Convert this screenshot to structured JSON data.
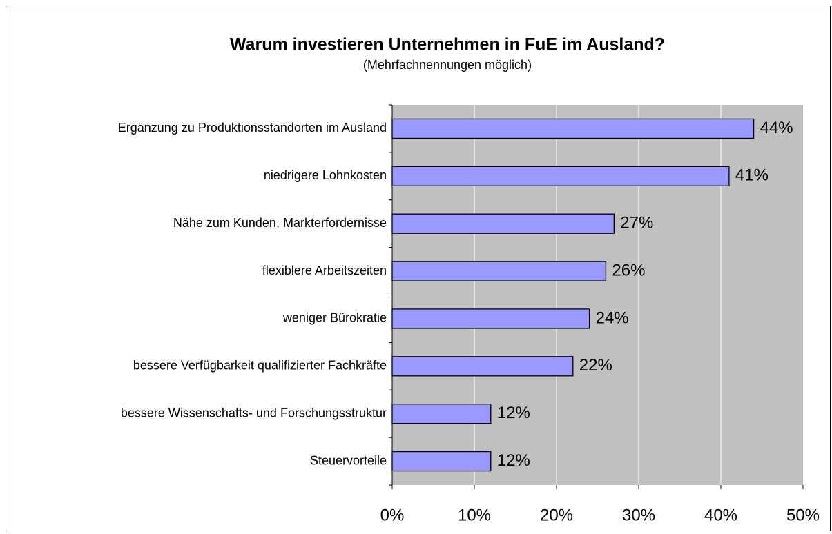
{
  "chart_data": {
    "type": "bar",
    "orientation": "horizontal",
    "title": "Warum investieren Unternehmen in FuE im Ausland?",
    "subtitle": "(Mehrfachnennungen möglich)",
    "categories": [
      "Ergänzung zu Produktionsstandorten im Ausland",
      "niedrigere Lohnkosten",
      "Nähe zum Kunden, Markterfordernisse",
      "flexiblere Arbeitszeiten",
      "weniger Bürokratie",
      "bessere Verfügbarkeit qualifizierter Fachkräfte",
      "bessere Wissenschafts- und Forschungsstruktur",
      "Steuervorteile"
    ],
    "values": [
      44,
      41,
      27,
      26,
      24,
      22,
      12,
      12
    ],
    "value_labels": [
      "44%",
      "41%",
      "27%",
      "26%",
      "24%",
      "22%",
      "12%",
      "12%"
    ],
    "color": "#9999ff",
    "xlim": [
      0,
      50
    ],
    "xticks": [
      {
        "value": 0,
        "label": "0%"
      },
      {
        "value": 10,
        "label": "10%"
      },
      {
        "value": 20,
        "label": "20%"
      },
      {
        "value": 30,
        "label": "30%"
      },
      {
        "value": 40,
        "label": "40%"
      },
      {
        "value": 50,
        "label": "50%"
      }
    ],
    "grid": true
  }
}
